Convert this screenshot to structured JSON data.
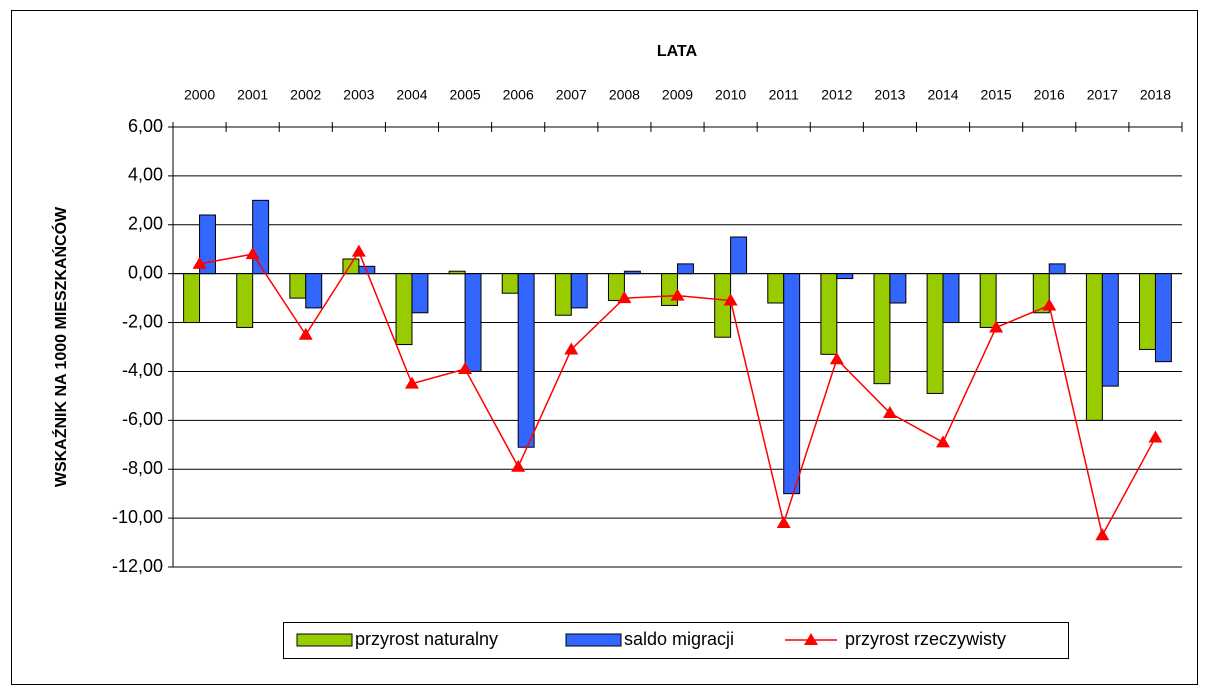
{
  "chart_data": {
    "type": "bar",
    "title": "LATA",
    "y_label": "WSKAŹNIK NA 1000 MIESZKAŃCÓW",
    "categories": [
      "2000",
      "2001",
      "2002",
      "2003",
      "2004",
      "2005",
      "2006",
      "2007",
      "2008",
      "2009",
      "2010",
      "2011",
      "2012",
      "2013",
      "2014",
      "2015",
      "2016",
      "2017",
      "2018"
    ],
    "series": [
      {
        "name": "przyrost naturalny",
        "color": "#99cc00",
        "type": "bar",
        "values": [
          -2.0,
          -2.2,
          -1.0,
          0.6,
          -2.9,
          0.1,
          -0.8,
          -1.7,
          -1.1,
          -1.3,
          -2.6,
          -1.2,
          -3.3,
          -4.5,
          -4.9,
          -2.2,
          -1.6,
          -6.0,
          -3.1
        ]
      },
      {
        "name": "saldo migracji",
        "color": "#3366ff",
        "type": "bar",
        "values": [
          2.4,
          3.0,
          -1.4,
          0.3,
          -1.6,
          -4.0,
          -7.1,
          -1.4,
          0.1,
          0.4,
          1.5,
          -9.0,
          -0.2,
          -1.2,
          -2.0,
          0,
          0.4,
          -4.6,
          -3.6
        ]
      },
      {
        "name": "przyrost rzeczywisty",
        "color": "#ff0000",
        "type": "line",
        "values": [
          0.4,
          0.8,
          -2.5,
          0.9,
          -4.5,
          -3.9,
          -7.9,
          -3.1,
          -1.0,
          -0.9,
          -1.1,
          -10.2,
          -3.5,
          -5.7,
          -6.9,
          -2.2,
          -1.3,
          -10.7,
          -6.7
        ]
      }
    ],
    "ylim": [
      -12,
      6
    ],
    "yticks": [
      {
        "value": -12,
        "label": "-12,00"
      },
      {
        "value": -10,
        "label": "-10,00"
      },
      {
        "value": -8,
        "label": "-8,00"
      },
      {
        "value": -6,
        "label": "-6,00"
      },
      {
        "value": -4,
        "label": "-4,00"
      },
      {
        "value": -2,
        "label": "-2,00"
      },
      {
        "value": 0,
        "label": "0,00"
      },
      {
        "value": 2,
        "label": "2,00"
      },
      {
        "value": 4,
        "label": "4,00"
      },
      {
        "value": 6,
        "label": "6,00"
      }
    ],
    "grid": true,
    "legend": "bottom"
  }
}
